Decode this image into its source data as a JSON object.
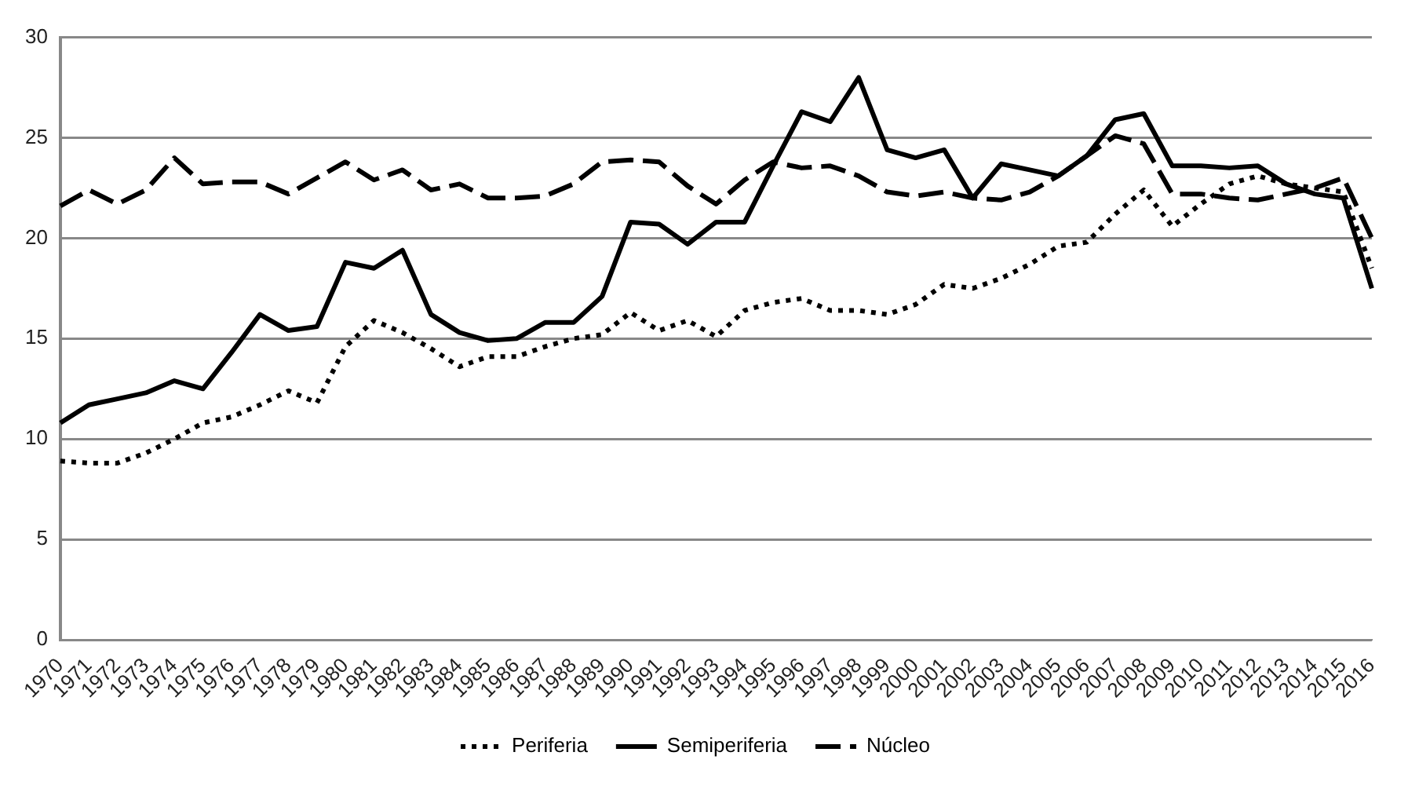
{
  "chart_data": {
    "type": "line",
    "categories": [
      "1970",
      "1971",
      "1972",
      "1973",
      "1974",
      "1975",
      "1976",
      "1977",
      "1978",
      "1979",
      "1980",
      "1981",
      "1982",
      "1983",
      "1984",
      "1985",
      "1986",
      "1987",
      "1988",
      "1989",
      "1990",
      "1991",
      "1992",
      "1993",
      "1994",
      "1995",
      "1996",
      "1997",
      "1998",
      "1999",
      "2000",
      "2001",
      "2002",
      "2003",
      "2004",
      "2005",
      "2006",
      "2007",
      "2008",
      "2009",
      "2010",
      "2011",
      "2012",
      "2013",
      "2014",
      "2015",
      "2016"
    ],
    "series": [
      {
        "name": "Periferia",
        "color": "#000000",
        "line_style": "dotted",
        "values": [
          8.9,
          8.8,
          8.8,
          9.3,
          10.0,
          10.8,
          11.1,
          11.7,
          12.4,
          11.8,
          14.6,
          15.9,
          15.3,
          14.5,
          13.6,
          14.1,
          14.1,
          14.6,
          15.0,
          15.2,
          16.3,
          15.4,
          15.9,
          15.1,
          16.4,
          16.8,
          17.0,
          16.4,
          16.4,
          16.2,
          16.7,
          17.7,
          17.5,
          18.0,
          18.7,
          19.6,
          19.8,
          21.2,
          22.4,
          20.6,
          21.7,
          22.7,
          23.1,
          22.7,
          22.5,
          22.3,
          18.5
        ]
      },
      {
        "name": "Semiperiferia",
        "color": "#000000",
        "line_style": "solid",
        "values": [
          10.8,
          11.7,
          12.0,
          12.3,
          12.9,
          12.5,
          14.3,
          16.2,
          15.4,
          15.6,
          18.8,
          18.5,
          19.4,
          16.2,
          15.3,
          14.9,
          15.0,
          15.8,
          15.8,
          17.1,
          20.8,
          20.7,
          19.7,
          20.8,
          20.8,
          23.6,
          26.3,
          25.8,
          28.0,
          24.4,
          24.0,
          24.4,
          22.0,
          23.7,
          23.4,
          23.1,
          24.1,
          25.9,
          26.2,
          23.6,
          23.6,
          23.5,
          23.6,
          22.7,
          22.2,
          22.0,
          17.5
        ]
      },
      {
        "name": "Núcleo",
        "color": "#000000",
        "line_style": "dashed",
        "values": [
          21.6,
          22.4,
          21.7,
          22.4,
          24.0,
          22.7,
          22.8,
          22.8,
          22.2,
          23.0,
          23.8,
          22.9,
          23.4,
          22.4,
          22.7,
          22.0,
          22.0,
          22.1,
          22.7,
          23.8,
          23.9,
          23.8,
          22.6,
          21.7,
          22.9,
          23.8,
          23.5,
          23.6,
          23.1,
          22.3,
          22.1,
          22.3,
          22.0,
          21.9,
          22.3,
          23.1,
          24.1,
          25.1,
          24.7,
          22.2,
          22.2,
          22.0,
          21.9,
          22.2,
          22.5,
          23.0,
          20.0
        ]
      }
    ],
    "ylim": [
      0,
      30
    ],
    "yticks": [
      0,
      5,
      10,
      15,
      20,
      25,
      30
    ],
    "grid": "y",
    "legend": "bottom",
    "marker": "none"
  }
}
